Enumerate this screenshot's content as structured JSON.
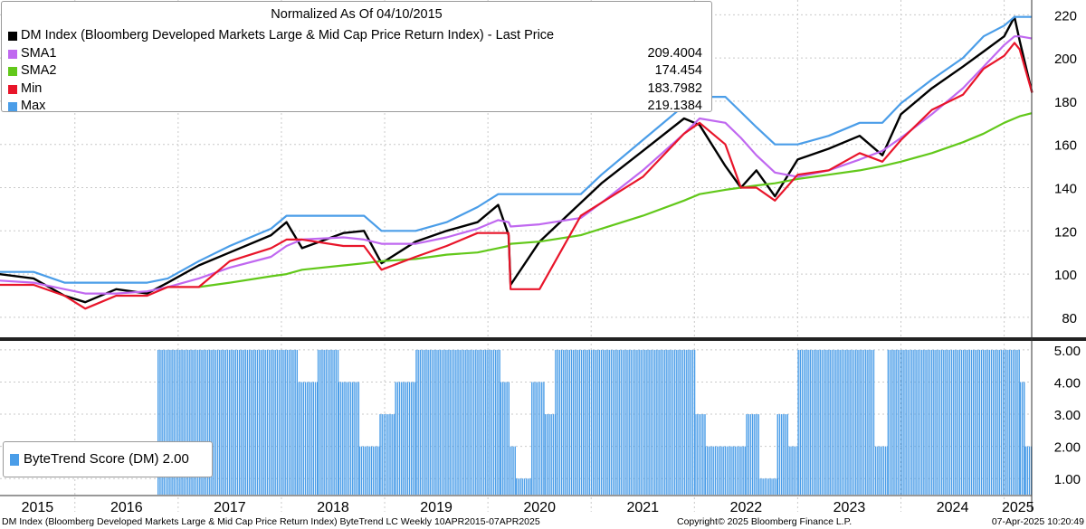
{
  "chart_data": [
    {
      "type": "line",
      "title": "Normalized As Of 04/10/2015",
      "x_range": [
        "2015-04-10",
        "2025-04-07"
      ],
      "ylim": [
        72,
        226
      ],
      "y_ticks": [
        80,
        100,
        120,
        140,
        160,
        180,
        200,
        220
      ],
      "grid": true,
      "legend_position": "top-left",
      "x": [
        2015.27,
        2015.6,
        2015.9,
        2016.1,
        2016.4,
        2016.7,
        2016.9,
        2017.2,
        2017.5,
        2017.9,
        2018.05,
        2018.2,
        2018.6,
        2018.8,
        2018.97,
        2019.3,
        2019.6,
        2019.9,
        2020.1,
        2020.2,
        2020.22,
        2020.5,
        2020.9,
        2021.1,
        2021.5,
        2021.9,
        2022.05,
        2022.3,
        2022.45,
        2022.6,
        2022.78,
        2023.0,
        2023.3,
        2023.6,
        2023.82,
        2024.0,
        2024.3,
        2024.6,
        2024.8,
        2025.0,
        2025.1,
        2025.15,
        2025.27
      ],
      "series": [
        {
          "name": "DM Index (Bloomberg Developed Markets Large & Mid Cap Price Return Index) - Last Price",
          "color": "#000000",
          "values": [
            100,
            98,
            90,
            87,
            93,
            91,
            96,
            104,
            110,
            118,
            124,
            112,
            119,
            120,
            105,
            115,
            120,
            124,
            132,
            118,
            95,
            115,
            133,
            142,
            157,
            172,
            169,
            150,
            140,
            148,
            136,
            153,
            158,
            164,
            155,
            174,
            186,
            196,
            203,
            210,
            219,
            208,
            184
          ]
        },
        {
          "name": "SMA1",
          "color": "#c068f0",
          "value": "209.4004",
          "values": [
            97,
            96,
            93,
            91,
            91,
            92,
            94,
            98,
            103,
            108,
            113,
            116,
            117,
            116,
            114,
            114,
            117,
            121,
            125,
            124,
            122,
            123,
            126,
            133,
            148,
            165,
            172,
            170,
            163,
            155,
            147,
            145,
            148,
            153,
            157,
            163,
            174,
            186,
            196,
            206,
            210,
            210,
            209
          ]
        },
        {
          "name": "SMA2",
          "color": "#62c81a",
          "value": "174.454",
          "values": [
            null,
            null,
            null,
            null,
            null,
            null,
            null,
            94,
            96,
            99,
            100,
            102,
            104,
            105,
            106,
            107,
            109,
            110,
            112,
            113,
            114,
            115,
            118,
            121,
            127,
            134,
            137,
            139,
            140,
            141,
            142,
            144,
            146,
            148,
            150,
            152,
            156,
            161,
            165,
            170,
            172,
            173,
            174.5
          ]
        },
        {
          "name": "Min",
          "color": "#e8152a",
          "value": "183.7982",
          "values": [
            95,
            95,
            90,
            84,
            90,
            90,
            94,
            94,
            106,
            112,
            116,
            116,
            113,
            113,
            102,
            108,
            113,
            119,
            119,
            119,
            93,
            93,
            127,
            133,
            145,
            165,
            170,
            160,
            140,
            140,
            134,
            146,
            148,
            156,
            152,
            162,
            176,
            183,
            195,
            201,
            207,
            204,
            184
          ]
        },
        {
          "name": "Max",
          "color": "#4a9de8",
          "value": "219.1384",
          "values": [
            101,
            101,
            96,
            96,
            96,
            96,
            98,
            106,
            113,
            121,
            127,
            127,
            127,
            127,
            120,
            120,
            124,
            131,
            137,
            137,
            137,
            137,
            137,
            146,
            162,
            178,
            182,
            182,
            175,
            168,
            160,
            160,
            164,
            170,
            170,
            179,
            190,
            200,
            210,
            215,
            219,
            219,
            219
          ]
        }
      ],
      "x_tick_labels": [
        "2015",
        "2016",
        "2017",
        "2018",
        "2019",
        "2020",
        "2021",
        "2022",
        "2023",
        "2024",
        "2025"
      ]
    },
    {
      "type": "bar",
      "ylim": [
        0.5,
        5.25
      ],
      "y_ticks": [
        "1.00",
        "2.00",
        "3.00",
        "4.00",
        "5.00"
      ],
      "series": [
        {
          "name": "ByteTrend Score (DM)",
          "color": "#4a9de8",
          "value": "2.00",
          "segments": [
            {
              "from": 2016.8,
              "to": 2018.15,
              "score": 5
            },
            {
              "from": 2018.15,
              "to": 2018.35,
              "score": 4
            },
            {
              "from": 2018.35,
              "to": 2018.55,
              "score": 5
            },
            {
              "from": 2018.55,
              "to": 2018.75,
              "score": 4
            },
            {
              "from": 2018.75,
              "to": 2018.95,
              "score": 2
            },
            {
              "from": 2018.95,
              "to": 2019.1,
              "score": 3
            },
            {
              "from": 2019.1,
              "to": 2019.3,
              "score": 4
            },
            {
              "from": 2019.3,
              "to": 2020.12,
              "score": 5
            },
            {
              "from": 2020.12,
              "to": 2020.2,
              "score": 4
            },
            {
              "from": 2020.2,
              "to": 2020.27,
              "score": 2
            },
            {
              "from": 2020.27,
              "to": 2020.42,
              "score": 1
            },
            {
              "from": 2020.42,
              "to": 2020.55,
              "score": 4
            },
            {
              "from": 2020.55,
              "to": 2020.65,
              "score": 3
            },
            {
              "from": 2020.65,
              "to": 2022.0,
              "score": 5
            },
            {
              "from": 2022.0,
              "to": 2022.1,
              "score": 3
            },
            {
              "from": 2022.1,
              "to": 2022.5,
              "score": 2
            },
            {
              "from": 2022.5,
              "to": 2022.62,
              "score": 3
            },
            {
              "from": 2022.62,
              "to": 2022.8,
              "score": 1
            },
            {
              "from": 2022.8,
              "to": 2022.9,
              "score": 3
            },
            {
              "from": 2022.9,
              "to": 2023.0,
              "score": 2
            },
            {
              "from": 2023.0,
              "to": 2023.75,
              "score": 5
            },
            {
              "from": 2023.75,
              "to": 2023.87,
              "score": 2
            },
            {
              "from": 2023.87,
              "to": 2025.15,
              "score": 5
            },
            {
              "from": 2025.15,
              "to": 2025.2,
              "score": 4
            },
            {
              "from": 2025.2,
              "to": 2025.27,
              "score": 2
            }
          ]
        }
      ]
    }
  ],
  "footer": {
    "left": "DM Index (Bloomberg Developed Markets Large & Mid Cap Price Return Index) ByteTrend LC  Weekly 10APR2015-07APR2025",
    "middle": "Copyright© 2025 Bloomberg Finance L.P.",
    "right": "07-Apr-2025 10:20:49"
  }
}
